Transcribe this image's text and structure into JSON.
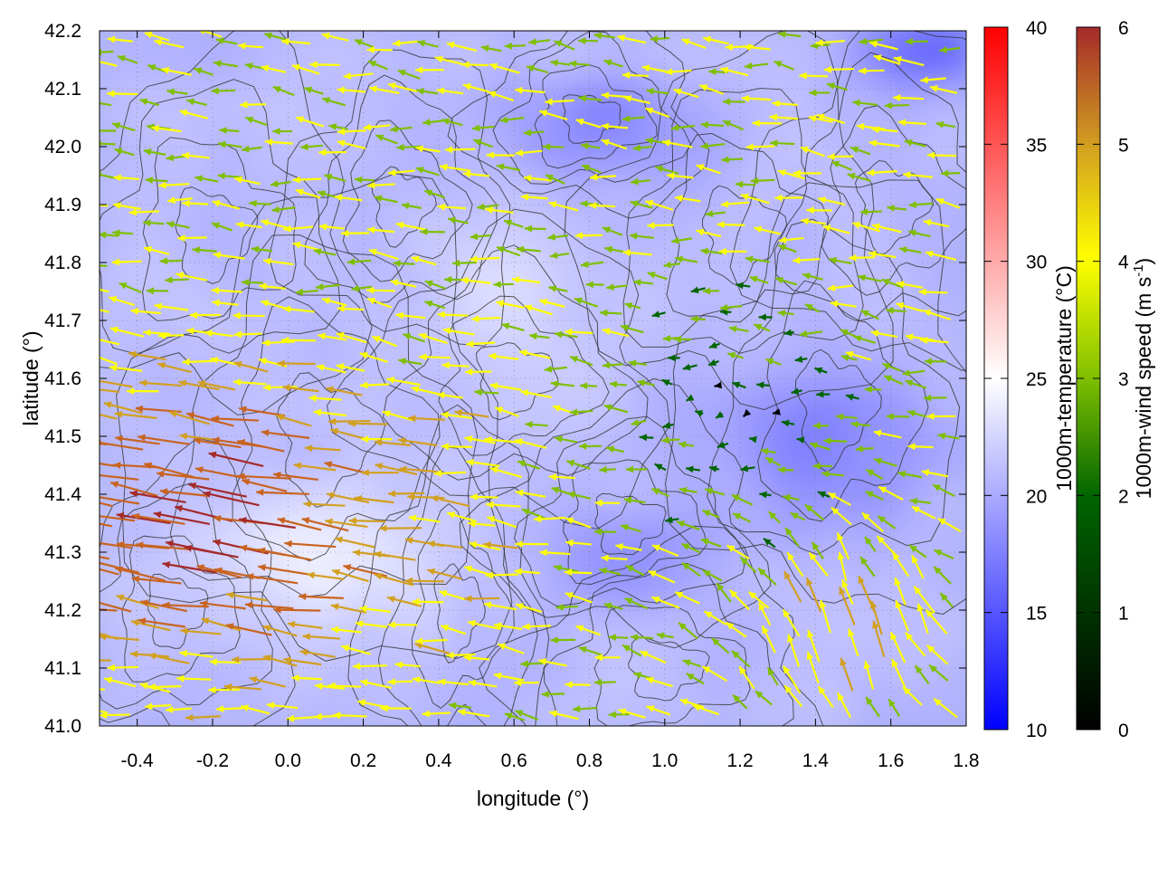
{
  "chart_data": {
    "type": "heatmap",
    "subtype": "temperature field with wind vectors and contour overlay",
    "xlabel": "longitude (°)",
    "ylabel": "latitude (°)",
    "xlim": [
      -0.5,
      1.8
    ],
    "ylim": [
      41.0,
      42.2
    ],
    "x_ticks": [
      "-0.4",
      "-0.2",
      "0.0",
      "0.2",
      "0.4",
      "0.6",
      "0.8",
      "1.0",
      "1.2",
      "1.4",
      "1.6",
      "1.8"
    ],
    "x_tick_values": [
      -0.4,
      -0.2,
      0.0,
      0.2,
      0.4,
      0.6,
      0.8,
      1.0,
      1.2,
      1.4,
      1.6,
      1.8
    ],
    "y_ticks": [
      "41.0",
      "41.1",
      "41.2",
      "41.3",
      "41.4",
      "41.5",
      "41.6",
      "41.7",
      "41.8",
      "41.9",
      "42.0",
      "42.1",
      "42.2"
    ],
    "y_tick_values": [
      41.0,
      41.1,
      41.2,
      41.3,
      41.4,
      41.5,
      41.6,
      41.7,
      41.8,
      41.9,
      42.0,
      42.1,
      42.2
    ],
    "grid": true,
    "temperature_colorbar": {
      "label": "1000m-temperature (°C)",
      "range": [
        10,
        40
      ],
      "ticks": [
        "10",
        "15",
        "20",
        "25",
        "30",
        "35",
        "40"
      ],
      "tick_values": [
        10,
        15,
        20,
        25,
        30,
        35,
        40
      ],
      "colors": [
        "#0000ff",
        "#ffffff",
        "#ff0000"
      ]
    },
    "wind_colorbar": {
      "label": "1000m-wind speed (m s",
      "label_sup": "-1",
      "label_end": ")",
      "range": [
        0,
        6
      ],
      "ticks": [
        "0",
        "1",
        "2",
        "3",
        "4",
        "5",
        "6"
      ],
      "tick_values": [
        0,
        1,
        2,
        3,
        4,
        5,
        6
      ],
      "colors": [
        "#000000",
        "#006400",
        "#7fbf00",
        "#ffff00",
        "#d2a020",
        "#c86420",
        "#a52a2a"
      ]
    }
  }
}
